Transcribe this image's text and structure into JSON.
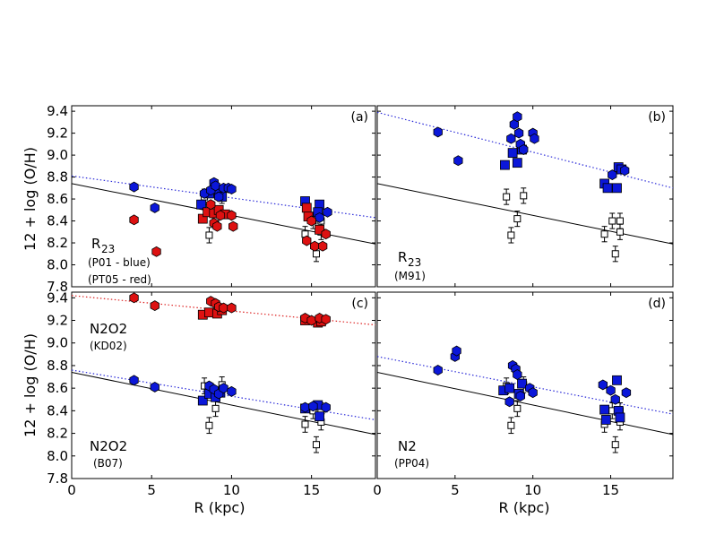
{
  "figure": {
    "ylabel": "12 + log (O/H)",
    "xlabel": "R (kpc)",
    "xlim": [
      0,
      19
    ],
    "ylim": [
      7.8,
      9.45
    ],
    "xticks": [
      "0",
      "5",
      "10",
      "15"
    ],
    "yticks": [
      "7.8",
      "8.0",
      "8.2",
      "8.4",
      "8.6",
      "8.8",
      "9.0",
      "9.2",
      "9.4"
    ]
  },
  "colors": {
    "blue": "#0b17d9",
    "red": "#dd1111",
    "blue_line": "#2a2ad8",
    "red_line": "#dd2222"
  },
  "chart_data": [
    {
      "panel": "a",
      "label": "(a)",
      "type": "scatter",
      "annotations": {
        "main": "R",
        "sub": "23",
        "line2": "(P01  - blue)",
        "line3": "(PT05 - red)"
      },
      "solid_fit": [
        [
          0,
          8.74
        ],
        [
          19,
          8.19
        ]
      ],
      "dotted_fit": {
        "color": "blue",
        "points": [
          [
            0,
            8.81
          ],
          [
            19,
            8.43
          ]
        ]
      },
      "hexagons": [
        {
          "color": "blue",
          "points": [
            [
              3.9,
              8.71
            ],
            [
              5.2,
              8.52
            ],
            [
              8.3,
              8.65
            ],
            [
              8.7,
              8.68
            ],
            [
              8.9,
              8.75
            ],
            [
              9.0,
              8.72
            ],
            [
              9.2,
              8.62
            ],
            [
              9.5,
              8.7
            ],
            [
              9.8,
              8.7
            ],
            [
              10.0,
              8.69
            ],
            [
              15.5,
              8.43
            ],
            [
              16.0,
              8.48
            ]
          ]
        },
        {
          "color": "red",
          "points": [
            [
              3.9,
              8.41
            ],
            [
              5.3,
              8.12
            ],
            [
              8.7,
              8.55
            ],
            [
              8.9,
              8.38
            ],
            [
              9.1,
              8.35
            ],
            [
              9.3,
              8.45
            ],
            [
              10.0,
              8.45
            ],
            [
              10.1,
              8.35
            ],
            [
              14.7,
              8.22
            ],
            [
              15.0,
              8.4
            ],
            [
              15.2,
              8.17
            ],
            [
              15.7,
              8.17
            ],
            [
              15.9,
              8.28
            ]
          ]
        }
      ],
      "squares": [
        {
          "color": "blue",
          "points": [
            [
              8.1,
              8.55
            ],
            [
              8.6,
              8.65
            ],
            [
              9.2,
              8.65
            ],
            [
              9.4,
              8.62
            ],
            [
              14.6,
              8.58
            ],
            [
              15.5,
              8.55
            ],
            [
              15.4,
              8.48
            ]
          ]
        },
        {
          "color": "red",
          "points": [
            [
              8.2,
              8.42
            ],
            [
              8.5,
              8.48
            ],
            [
              8.9,
              8.47
            ],
            [
              9.2,
              8.5
            ],
            [
              9.6,
              8.46
            ],
            [
              14.7,
              8.52
            ],
            [
              14.8,
              8.44
            ],
            [
              15.5,
              8.32
            ]
          ]
        }
      ],
      "open_points": [
        [
          8.3,
          8.62
        ],
        [
          8.6,
          8.27
        ],
        [
          9.0,
          8.42
        ],
        [
          9.4,
          8.63
        ],
        [
          14.6,
          8.28
        ],
        [
          15.1,
          8.4
        ],
        [
          15.3,
          8.1
        ],
        [
          15.6,
          8.3
        ],
        [
          15.6,
          8.4
        ]
      ]
    },
    {
      "panel": "b",
      "label": "(b)",
      "type": "scatter",
      "annotations": {
        "main": "R",
        "sub": "23",
        "line2": "(M91)",
        "line3": ""
      },
      "solid_fit": [
        [
          0,
          8.74
        ],
        [
          19,
          8.19
        ]
      ],
      "dotted_fit": {
        "color": "blue",
        "points": [
          [
            0,
            9.39
          ],
          [
            19,
            8.7
          ]
        ]
      },
      "hexagons": [
        {
          "color": "blue",
          "points": [
            [
              3.9,
              9.21
            ],
            [
              5.2,
              8.95
            ],
            [
              8.6,
              9.15
            ],
            [
              8.8,
              9.28
            ],
            [
              9.0,
              9.35
            ],
            [
              9.1,
              9.2
            ],
            [
              9.2,
              9.1
            ],
            [
              9.4,
              9.05
            ],
            [
              10.0,
              9.2
            ],
            [
              10.1,
              9.15
            ],
            [
              15.1,
              8.82
            ],
            [
              15.9,
              8.86
            ]
          ]
        }
      ],
      "squares": [
        {
          "color": "blue",
          "points": [
            [
              8.2,
              8.91
            ],
            [
              8.7,
              9.02
            ],
            [
              9.0,
              8.93
            ],
            [
              9.3,
              9.05
            ],
            [
              14.6,
              8.74
            ],
            [
              14.8,
              8.7
            ],
            [
              15.4,
              8.7
            ],
            [
              15.5,
              8.89
            ],
            [
              15.7,
              8.87
            ]
          ]
        }
      ],
      "open_points": [
        [
          8.3,
          8.62
        ],
        [
          8.6,
          8.27
        ],
        [
          9.0,
          8.42
        ],
        [
          9.4,
          8.63
        ],
        [
          14.6,
          8.28
        ],
        [
          15.1,
          8.4
        ],
        [
          15.3,
          8.1
        ],
        [
          15.6,
          8.3
        ],
        [
          15.6,
          8.4
        ]
      ]
    },
    {
      "panel": "c",
      "label": "(c)",
      "type": "scatter",
      "annotations": {
        "main": "N2O2",
        "sub": "",
        "line2": "(KD02)",
        "line3": "",
        "main2": "N2O2",
        "line4": "(B07)"
      },
      "solid_fit": [
        [
          0,
          8.74
        ],
        [
          19,
          8.19
        ]
      ],
      "dotted_fit": [
        {
          "color": "red",
          "points": [
            [
              0,
              9.42
            ],
            [
              19,
              9.16
            ]
          ]
        },
        {
          "color": "blue",
          "points": [
            [
              0,
              8.76
            ],
            [
              19,
              8.32
            ]
          ]
        }
      ],
      "hexagons": [
        {
          "color": "red",
          "points": [
            [
              3.9,
              9.4
            ],
            [
              5.2,
              9.33
            ],
            [
              8.7,
              9.37
            ],
            [
              9.0,
              9.35
            ],
            [
              9.2,
              9.32
            ],
            [
              9.5,
              9.31
            ],
            [
              10.0,
              9.31
            ],
            [
              14.6,
              9.22
            ],
            [
              15.0,
              9.2
            ],
            [
              15.5,
              9.22
            ],
            [
              15.9,
              9.21
            ]
          ]
        },
        {
          "color": "blue",
          "points": [
            [
              3.9,
              8.67
            ],
            [
              5.2,
              8.61
            ],
            [
              8.6,
              8.62
            ],
            [
              8.9,
              8.59
            ],
            [
              9.2,
              8.55
            ],
            [
              9.5,
              8.6
            ],
            [
              10.0,
              8.57
            ],
            [
              14.6,
              8.43
            ],
            [
              15.1,
              8.44
            ],
            [
              15.9,
              8.43
            ]
          ]
        }
      ],
      "squares": [
        {
          "color": "red",
          "points": [
            [
              8.2,
              9.25
            ],
            [
              8.6,
              9.27
            ],
            [
              9.1,
              9.26
            ],
            [
              9.4,
              9.29
            ],
            [
              14.6,
              9.2
            ],
            [
              15.4,
              9.18
            ],
            [
              15.6,
              9.19
            ]
          ]
        },
        {
          "color": "blue",
          "points": [
            [
              8.2,
              8.49
            ],
            [
              8.6,
              8.55
            ],
            [
              9.0,
              8.52
            ],
            [
              9.3,
              8.56
            ],
            [
              14.6,
              8.42
            ],
            [
              15.4,
              8.45
            ],
            [
              15.5,
              8.35
            ]
          ]
        }
      ],
      "open_points": [
        [
          8.3,
          8.62
        ],
        [
          8.6,
          8.27
        ],
        [
          9.0,
          8.42
        ],
        [
          9.4,
          8.63
        ],
        [
          14.6,
          8.28
        ],
        [
          15.1,
          8.4
        ],
        [
          15.3,
          8.1
        ],
        [
          15.6,
          8.3
        ],
        [
          15.6,
          8.4
        ]
      ]
    },
    {
      "panel": "d",
      "label": "(d)",
      "type": "scatter",
      "annotations": {
        "main": "N2",
        "sub": "",
        "line2": "(PP04)",
        "line3": ""
      },
      "solid_fit": [
        [
          0,
          8.74
        ],
        [
          19,
          8.19
        ]
      ],
      "dotted_fit": {
        "color": "blue",
        "points": [
          [
            0,
            8.88
          ],
          [
            19,
            8.37
          ]
        ]
      },
      "hexagons": [
        {
          "color": "blue",
          "points": [
            [
              3.9,
              8.76
            ],
            [
              5.0,
              8.88
            ],
            [
              5.1,
              8.93
            ],
            [
              8.5,
              8.48
            ],
            [
              8.7,
              8.8
            ],
            [
              8.9,
              8.77
            ],
            [
              9.0,
              8.72
            ],
            [
              9.2,
              8.53
            ],
            [
              9.8,
              8.6
            ],
            [
              10.0,
              8.56
            ],
            [
              14.5,
              8.63
            ],
            [
              15.0,
              8.58
            ],
            [
              15.3,
              8.5
            ],
            [
              16.0,
              8.56
            ]
          ]
        }
      ],
      "squares": [
        {
          "color": "blue",
          "points": [
            [
              8.1,
              8.58
            ],
            [
              8.5,
              8.6
            ],
            [
              9.1,
              8.55
            ],
            [
              9.3,
              8.64
            ],
            [
              14.6,
              8.41
            ],
            [
              14.7,
              8.32
            ],
            [
              15.4,
              8.67
            ],
            [
              15.5,
              8.4
            ],
            [
              15.6,
              8.34
            ]
          ]
        }
      ],
      "open_points": [
        [
          8.3,
          8.62
        ],
        [
          8.6,
          8.27
        ],
        [
          9.0,
          8.42
        ],
        [
          9.4,
          8.63
        ],
        [
          14.6,
          8.28
        ],
        [
          15.1,
          8.4
        ],
        [
          15.3,
          8.1
        ],
        [
          15.6,
          8.3
        ],
        [
          15.6,
          8.4
        ]
      ]
    }
  ]
}
